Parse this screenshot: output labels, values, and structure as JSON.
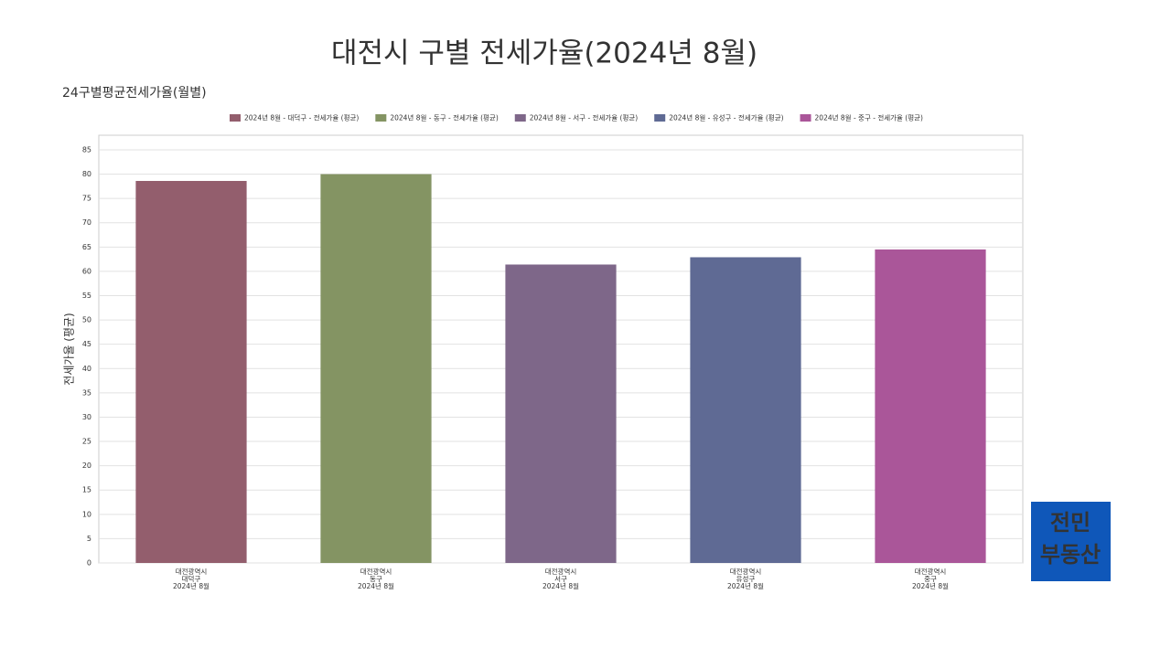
{
  "chart_data": {
    "type": "bar",
    "title": "대전시 구별 전세가율(2024년 8월)",
    "subtitle": "24구별평균전세가율(월별)",
    "y_label": "전세가율 (평균)",
    "categories": [
      [
        "대전광역시",
        "대덕구",
        "2024년 8월"
      ],
      [
        "대전광역시",
        "동구",
        "2024년 8월"
      ],
      [
        "대전광역시",
        "서구",
        "2024년 8월"
      ],
      [
        "대전광역시",
        "유성구",
        "2024년 8월"
      ],
      [
        "대전광역시",
        "중구",
        "2024년 8월"
      ]
    ],
    "series": [
      {
        "name": "2024년 8월 - 대덕구 - 전세가율 (평균)",
        "color": "#935e6d",
        "values": [
          78.6,
          null,
          null,
          null,
          null
        ]
      },
      {
        "name": "2024년 8월 - 동구 - 전세가율 (평균)",
        "color": "#849463",
        "values": [
          null,
          80,
          null,
          null,
          null
        ]
      },
      {
        "name": "2024년 8월 - 서구 - 전세가율 (평균)",
        "color": "#7e6789",
        "values": [
          null,
          null,
          61.4,
          null,
          null
        ]
      },
      {
        "name": "2024년 8월 - 유성구 - 전세가율 (평균)",
        "color": "#5f6a94",
        "values": [
          null,
          null,
          null,
          62.9,
          null
        ]
      },
      {
        "name": "2024년 8월 - 중구 - 전세가율 (평균)",
        "color": "#aa5699",
        "values": [
          null,
          null,
          null,
          null,
          64.5
        ]
      }
    ],
    "ylim": [
      0,
      88
    ],
    "yticks": [
      0,
      5,
      10,
      15,
      20,
      25,
      30,
      35,
      40,
      45,
      50,
      55,
      60,
      65,
      70,
      75,
      80,
      85
    ],
    "grid": true,
    "legend": "top",
    "logo": [
      "전민",
      "부동산"
    ]
  }
}
